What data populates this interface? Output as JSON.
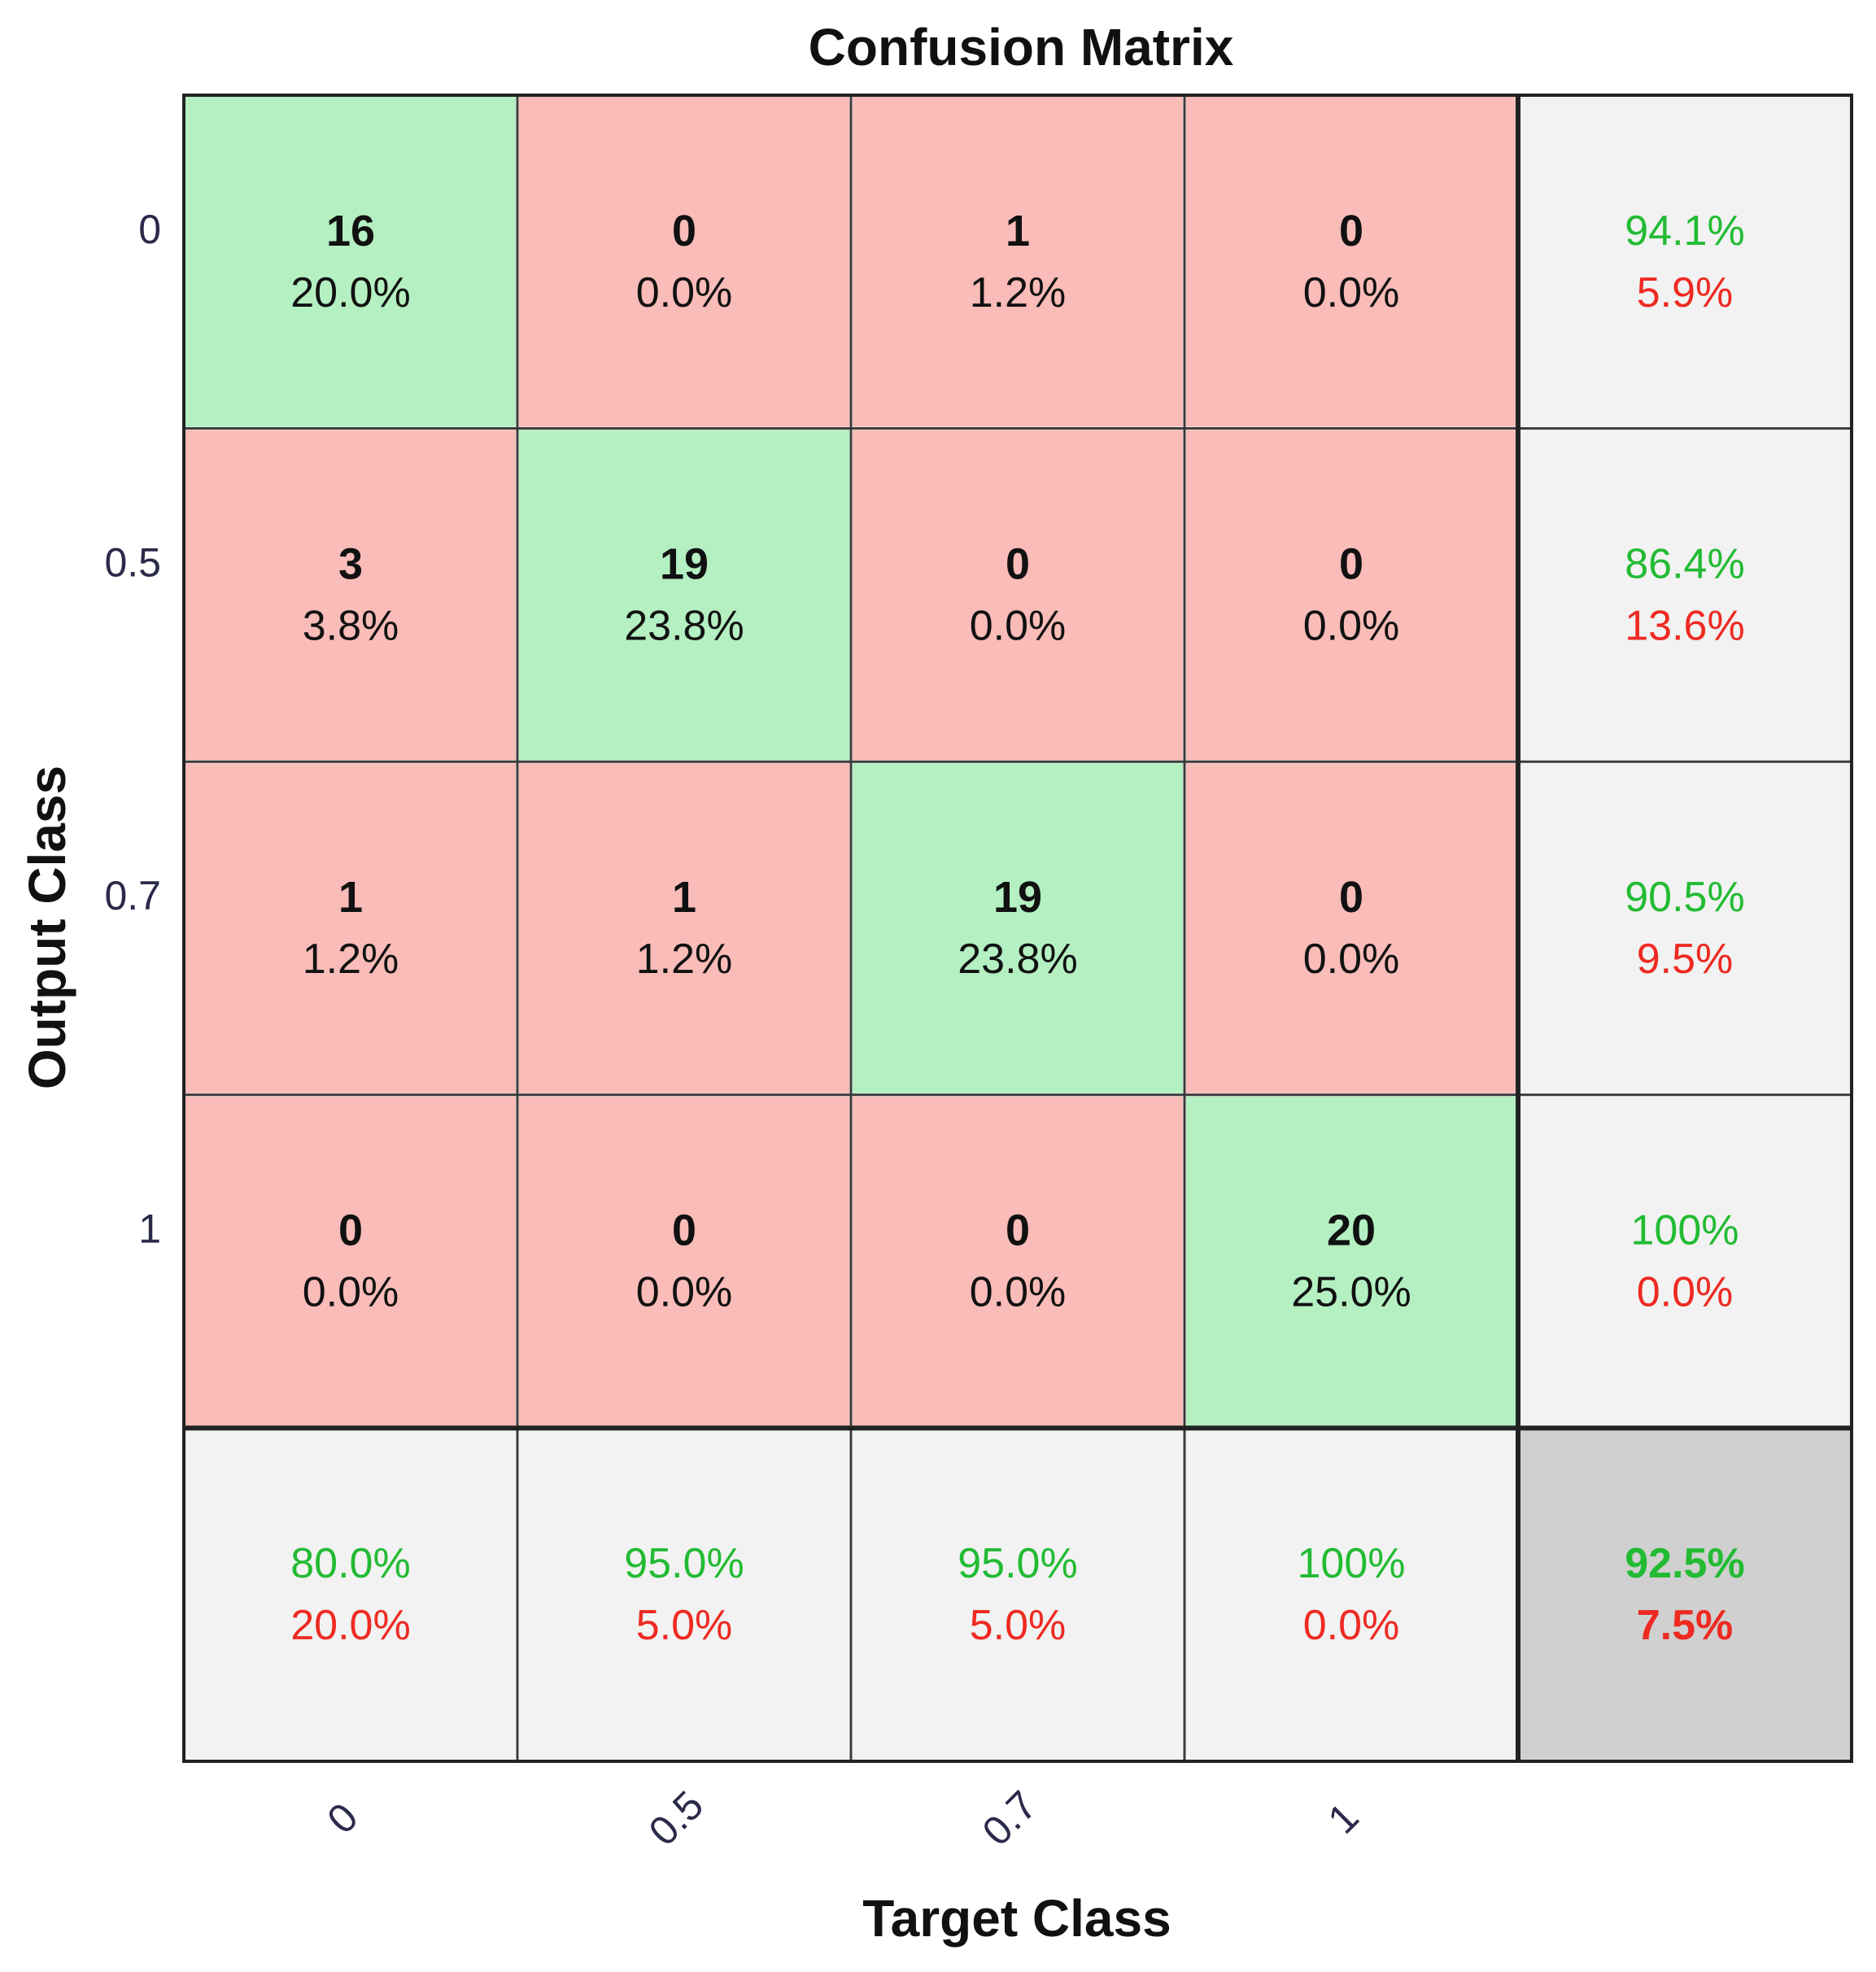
{
  "chart_data": {
    "type": "heatmap",
    "title": "Confusion Matrix",
    "xlabel": "Target Class",
    "ylabel": "Output Class",
    "classes": [
      "0",
      "0.5",
      "0.7",
      "1"
    ],
    "matrix": [
      [
        16,
        0,
        1,
        0
      ],
      [
        3,
        19,
        0,
        0
      ],
      [
        1,
        1,
        19,
        0
      ],
      [
        0,
        0,
        0,
        20
      ]
    ],
    "cell_percents": [
      [
        "20.0%",
        "0.0%",
        "1.2%",
        "0.0%"
      ],
      [
        "3.8%",
        "23.8%",
        "0.0%",
        "0.0%"
      ],
      [
        "1.2%",
        "1.2%",
        "23.8%",
        "0.0%"
      ],
      [
        "0.0%",
        "0.0%",
        "0.0%",
        "25.0%"
      ]
    ],
    "row_summary": [
      {
        "correct": "94.1%",
        "error": "5.9%"
      },
      {
        "correct": "86.4%",
        "error": "13.6%"
      },
      {
        "correct": "90.5%",
        "error": "9.5%"
      },
      {
        "correct": "100%",
        "error": "0.0%"
      }
    ],
    "col_summary": [
      {
        "correct": "80.0%",
        "error": "20.0%"
      },
      {
        "correct": "95.0%",
        "error": "5.0%"
      },
      {
        "correct": "95.0%",
        "error": "5.0%"
      },
      {
        "correct": "100%",
        "error": "0.0%"
      }
    ],
    "overall": {
      "correct": "92.5%",
      "error": "7.5%"
    },
    "colors": {
      "diagonal": "#b4f0c2",
      "off_diagonal": "#f9bcb8",
      "summary": "#f1f2f1",
      "overall": "#cfd0cf",
      "correct_text": "#22bb33",
      "error_text": "#ee2a22",
      "grid_line": "#3a3a3a",
      "text": "#111111",
      "tick_text": "#2a2a4a"
    }
  }
}
